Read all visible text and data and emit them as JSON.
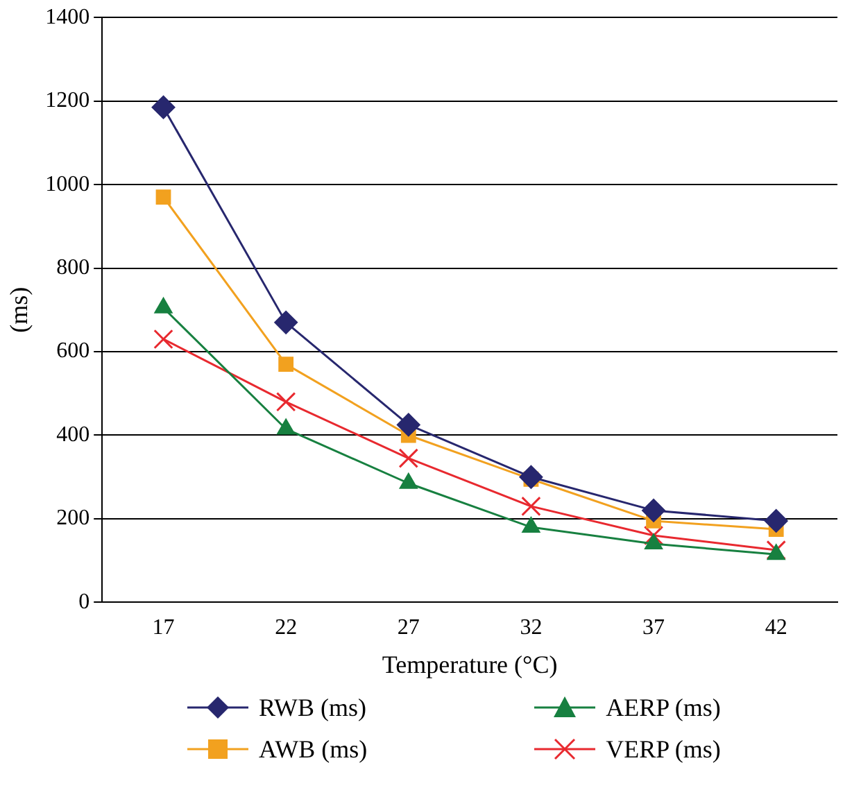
{
  "chart_data": {
    "type": "line",
    "xlabel": "Temperature (°C)",
    "ylabel": "(ms)",
    "categories": [
      "17",
      "22",
      "27",
      "32",
      "37",
      "42"
    ],
    "ylim": [
      0,
      1400
    ],
    "yticks": [
      0,
      200,
      400,
      600,
      800,
      1000,
      1200,
      1400
    ],
    "grid": "y",
    "legend": "bottom",
    "series": [
      {
        "name": "RWB (ms)",
        "color": "#27276e",
        "marker": "diamond",
        "values": [
          1185,
          670,
          425,
          300,
          220,
          195
        ]
      },
      {
        "name": "AWB (ms)",
        "color": "#f2a11f",
        "marker": "square",
        "values": [
          970,
          570,
          400,
          295,
          195,
          175
        ]
      },
      {
        "name": "AERP (ms)",
        "color": "#178040",
        "marker": "triangle",
        "values": [
          705,
          415,
          285,
          180,
          140,
          115
        ]
      },
      {
        "name": "VERP (ms)",
        "color": "#e8292f",
        "marker": "cross",
        "values": [
          630,
          480,
          345,
          230,
          160,
          125
        ]
      }
    ]
  }
}
